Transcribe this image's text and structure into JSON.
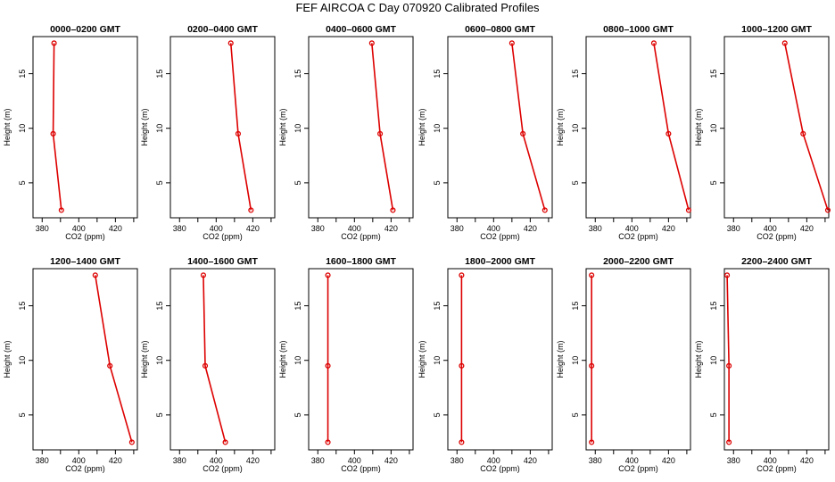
{
  "figure_title": "FEF AIRCOA C  Day 070920  Calibrated Profiles",
  "colors": {
    "profile": "#dd0000",
    "axis": "#000000"
  },
  "chart_data": [
    {
      "type": "line",
      "title": "0000–0200 GMT",
      "xlabel": "CO2 (ppm)",
      "ylabel": "Height (m)",
      "xlim": [
        375,
        432
      ],
      "ylim": [
        1.8,
        18.4
      ],
      "xticks": [
        "380",
        "400",
        "420"
      ],
      "yticks": [
        "5",
        "10",
        "15"
      ],
      "heights": [
        17.8,
        9.5,
        2.5
      ],
      "values": [
        386.5,
        386,
        390.5
      ]
    },
    {
      "type": "line",
      "title": "0200–0400 GMT",
      "xlabel": "CO2 (ppm)",
      "ylabel": "Height (m)",
      "xlim": [
        375,
        432
      ],
      "ylim": [
        1.8,
        18.4
      ],
      "xticks": [
        "380",
        "400",
        "420"
      ],
      "yticks": [
        "5",
        "10",
        "15"
      ],
      "heights": [
        17.8,
        9.5,
        2.5
      ],
      "values": [
        408,
        412,
        419
      ]
    },
    {
      "type": "line",
      "title": "0400–0600 GMT",
      "xlabel": "CO2 (ppm)",
      "ylabel": "Height (m)",
      "xlim": [
        375,
        432
      ],
      "ylim": [
        1.8,
        18.4
      ],
      "xticks": [
        "380",
        "400",
        "420"
      ],
      "yticks": [
        "5",
        "10",
        "15"
      ],
      "heights": [
        17.8,
        9.5,
        2.5
      ],
      "values": [
        409.5,
        414,
        421
      ]
    },
    {
      "type": "line",
      "title": "0600–0800 GMT",
      "xlabel": "CO2 (ppm)",
      "ylabel": "Height (m)",
      "xlim": [
        375,
        432
      ],
      "ylim": [
        1.8,
        18.4
      ],
      "xticks": [
        "380",
        "400",
        "420"
      ],
      "yticks": [
        "5",
        "10",
        "15"
      ],
      "heights": [
        17.8,
        9.5,
        2.5
      ],
      "values": [
        410,
        416,
        428
      ]
    },
    {
      "type": "line",
      "title": "0800–1000 GMT",
      "xlabel": "CO2 (ppm)",
      "ylabel": "Height (m)",
      "xlim": [
        375,
        432
      ],
      "ylim": [
        1.8,
        18.4
      ],
      "xticks": [
        "380",
        "400",
        "420"
      ],
      "yticks": [
        "5",
        "10",
        "15"
      ],
      "heights": [
        17.8,
        9.5,
        2.5
      ],
      "values": [
        412,
        420,
        431
      ]
    },
    {
      "type": "line",
      "title": "1000–1200 GMT",
      "xlabel": "CO2 (ppm)",
      "ylabel": "Height (m)",
      "xlim": [
        375,
        432
      ],
      "ylim": [
        1.8,
        18.4
      ],
      "xticks": [
        "380",
        "400",
        "420"
      ],
      "yticks": [
        "5",
        "10",
        "15"
      ],
      "heights": [
        17.8,
        9.5,
        2.5
      ],
      "values": [
        408,
        418,
        431.5
      ]
    },
    {
      "type": "line",
      "title": "1200–1400 GMT",
      "xlabel": "CO2 (ppm)",
      "ylabel": "Height (m)",
      "xlim": [
        375,
        432
      ],
      "ylim": [
        1.8,
        18.4
      ],
      "xticks": [
        "380",
        "400",
        "420"
      ],
      "yticks": [
        "5",
        "10",
        "15"
      ],
      "heights": [
        17.8,
        9.5,
        2.5
      ],
      "values": [
        409,
        417,
        429
      ]
    },
    {
      "type": "line",
      "title": "1400–1600 GMT",
      "xlabel": "CO2 (ppm)",
      "ylabel": "Height (m)",
      "xlim": [
        375,
        432
      ],
      "ylim": [
        1.8,
        18.4
      ],
      "xticks": [
        "380",
        "400",
        "420"
      ],
      "yticks": [
        "5",
        "10",
        "15"
      ],
      "heights": [
        17.8,
        9.5,
        2.5
      ],
      "values": [
        393,
        394,
        405
      ]
    },
    {
      "type": "line",
      "title": "1600–1800 GMT",
      "xlabel": "CO2 (ppm)",
      "ylabel": "Height (m)",
      "xlim": [
        375,
        432
      ],
      "ylim": [
        1.8,
        18.4
      ],
      "xticks": [
        "380",
        "400",
        "420"
      ],
      "yticks": [
        "5",
        "10",
        "15"
      ],
      "heights": [
        17.8,
        9.5,
        2.5
      ],
      "values": [
        385.5,
        385.5,
        385.5
      ]
    },
    {
      "type": "line",
      "title": "1800–2000 GMT",
      "xlabel": "CO2 (ppm)",
      "ylabel": "Height (m)",
      "xlim": [
        375,
        432
      ],
      "ylim": [
        1.8,
        18.4
      ],
      "xticks": [
        "380",
        "400",
        "420"
      ],
      "yticks": [
        "5",
        "10",
        "15"
      ],
      "heights": [
        17.8,
        9.5,
        2.5
      ],
      "values": [
        382.5,
        382.5,
        382.5
      ]
    },
    {
      "type": "line",
      "title": "2000–2200 GMT",
      "xlabel": "CO2 (ppm)",
      "ylabel": "Height (m)",
      "xlim": [
        375,
        432
      ],
      "ylim": [
        1.8,
        18.4
      ],
      "xticks": [
        "380",
        "400",
        "420"
      ],
      "yticks": [
        "5",
        "10",
        "15"
      ],
      "heights": [
        17.8,
        9.5,
        2.5
      ],
      "values": [
        378,
        378,
        378
      ]
    },
    {
      "type": "line",
      "title": "2200–2400 GMT",
      "xlabel": "CO2 (ppm)",
      "ylabel": "Height (m)",
      "xlim": [
        375,
        432
      ],
      "ylim": [
        1.8,
        18.4
      ],
      "xticks": [
        "380",
        "400",
        "420"
      ],
      "yticks": [
        "5",
        "10",
        "15"
      ],
      "heights": [
        17.8,
        9.5,
        2.5
      ],
      "values": [
        376.5,
        377.5,
        377.5
      ]
    }
  ]
}
